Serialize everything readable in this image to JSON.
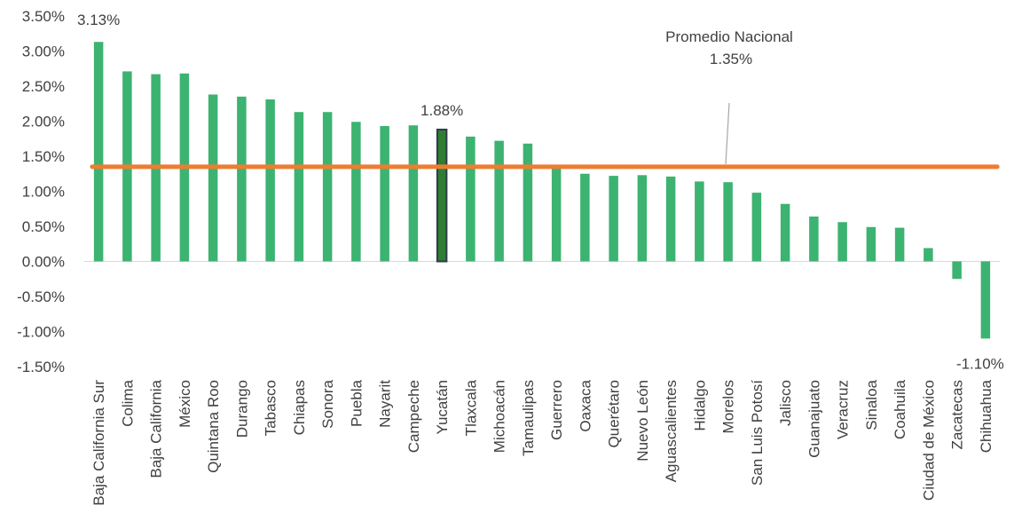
{
  "chart_data": {
    "type": "bar",
    "categories": [
      "Baja California Sur",
      "Colima",
      "Baja California",
      "México",
      "Quintana Roo",
      "Durango",
      "Tabasco",
      "Chiapas",
      "Sonora",
      "Puebla",
      "Nayarit",
      "Campeche",
      "Yucatán",
      "Tlaxcala",
      "Michoacán",
      "Tamaulipas",
      "Guerrero",
      "Oaxaca",
      "Querétaro",
      "Nuevo León",
      "Aguascalientes",
      "Hidalgo",
      "Morelos",
      "San Luis Potosí",
      "Jalisco",
      "Guanajuato",
      "Veracruz",
      "Sinaloa",
      "Coahuila",
      "Ciudad de México",
      "Zacatecas",
      "Chihuahua"
    ],
    "values": [
      3.13,
      2.71,
      2.67,
      2.68,
      2.38,
      2.35,
      2.31,
      2.13,
      2.13,
      1.99,
      1.93,
      1.94,
      1.88,
      1.78,
      1.72,
      1.68,
      1.36,
      1.25,
      1.22,
      1.23,
      1.21,
      1.14,
      1.13,
      0.98,
      0.82,
      0.64,
      0.56,
      0.49,
      0.48,
      0.19,
      -0.25,
      -1.1
    ],
    "highlight_index": 12,
    "ylim": [
      -1.5,
      3.5
    ],
    "yticks": [
      -1.5,
      -1.0,
      -0.5,
      0.0,
      0.5,
      1.0,
      1.5,
      2.0,
      2.5,
      3.0,
      3.5
    ],
    "ytick_labels": [
      "-1.50%",
      "-1.00%",
      "-0.50%",
      "0.00%",
      "0.50%",
      "1.00%",
      "1.50%",
      "2.00%",
      "2.50%",
      "3.00%",
      "3.50%"
    ],
    "data_labels": [
      {
        "index": 0,
        "text": "3.13%"
      },
      {
        "index": 12,
        "text": "1.88%"
      },
      {
        "index": 31,
        "text": "-1.10%"
      }
    ],
    "reference_line": {
      "value": 1.35,
      "label": "Promedio Nacional",
      "value_label": "1.35%",
      "color": "#ED7D31"
    },
    "colors": {
      "bar": "#3CB371",
      "highlight_fill": "#2E7D32",
      "highlight_border": "#2F3B4C",
      "axis": "#D9D9D9",
      "leader": "#A6A6A6"
    },
    "grid": false,
    "legend": "none"
  }
}
